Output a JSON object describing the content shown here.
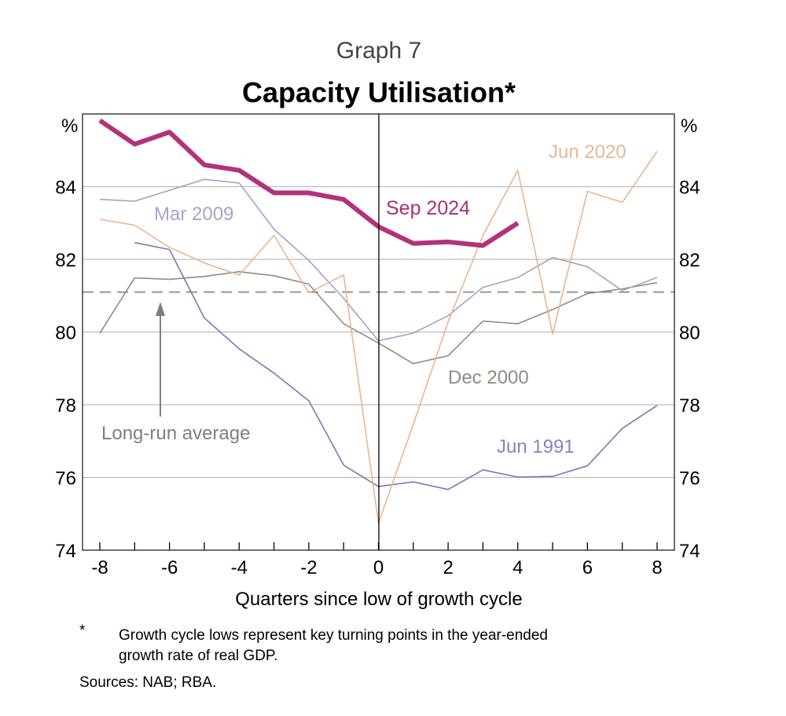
{
  "graph_number": "Graph 7",
  "chart_data": {
    "type": "line",
    "title": "Capacity Utilisation*",
    "xlabel": "Quarters since low of growth cycle",
    "ylabel_left": "%",
    "ylabel_right": "%",
    "xlim": [
      -8,
      8
    ],
    "ylim": [
      74,
      86
    ],
    "x_ticks": [
      -8,
      -6,
      -4,
      -2,
      0,
      2,
      4,
      6,
      8
    ],
    "y_ticks": [
      74,
      76,
      78,
      80,
      82,
      84
    ],
    "grid": true,
    "series": [
      {
        "name": "Jun 1991",
        "color": "#7b78b0",
        "width": 1.6,
        "x": [
          -7,
          -6,
          -5,
          -4,
          -3,
          -2,
          -1,
          0,
          1,
          2,
          3,
          4,
          5,
          6,
          7,
          8
        ],
        "values": [
          82.46,
          82.27,
          80.39,
          79.54,
          78.87,
          78.11,
          76.34,
          75.75,
          75.88,
          75.67,
          76.21,
          76.01,
          76.03,
          76.32,
          77.35,
          77.98
        ]
      },
      {
        "name": "Dec 2000",
        "color": "#8e8e86",
        "width": 1.6,
        "x": [
          -8,
          -7,
          -6,
          -5,
          -4,
          -3,
          -2,
          -1,
          0,
          1,
          2,
          3,
          4,
          5,
          6,
          7,
          8
        ],
        "values": [
          79.97,
          81.49,
          81.45,
          81.53,
          81.66,
          81.55,
          81.32,
          80.23,
          79.7,
          79.13,
          79.35,
          80.3,
          80.23,
          80.62,
          81.06,
          81.19,
          81.36
        ]
      },
      {
        "name": "Mar 2009",
        "color": "#a7a0c8",
        "width": 1.6,
        "x": [
          -8,
          -7,
          -6,
          -5,
          -4,
          -3,
          -2,
          -1,
          0,
          1,
          2,
          3,
          4,
          5,
          6,
          7,
          8
        ],
        "values": [
          83.65,
          83.6,
          83.9,
          84.2,
          84.1,
          82.83,
          81.97,
          80.93,
          79.76,
          79.97,
          80.45,
          81.23,
          81.5,
          82.05,
          81.8,
          81.14,
          81.5
        ]
      },
      {
        "name": "Jun 2020",
        "color": "#e9b58f",
        "width": 1.6,
        "x": [
          -8,
          -7,
          -6,
          -5,
          -4,
          -3,
          -2,
          -1,
          0,
          1,
          2,
          3,
          4,
          5,
          6,
          7,
          8
        ],
        "values": [
          83.1,
          82.94,
          82.33,
          81.9,
          81.57,
          82.66,
          81.08,
          81.57,
          74.74,
          77.46,
          80.28,
          82.66,
          84.45,
          79.95,
          83.87,
          83.57,
          84.97
        ]
      },
      {
        "name": "Sep 2024",
        "color": "#b3327a",
        "width": 6,
        "x": [
          -8,
          -7,
          -6,
          -5,
          -4,
          -3,
          -2,
          -1,
          0,
          1,
          2,
          3,
          4
        ],
        "values": [
          85.82,
          85.17,
          85.5,
          84.6,
          84.45,
          83.83,
          83.83,
          83.65,
          82.9,
          82.44,
          82.48,
          82.38,
          83.0
        ]
      }
    ],
    "reference_line": {
      "label": "Long-run average",
      "value": 81.1,
      "color": "#8a8a8a"
    },
    "annotations": {
      "Mar 2009": "Mar 2009",
      "Sep 2024": "Sep 2024",
      "Jun 2020": "Jun 2020",
      "Dec 2000": "Dec 2000",
      "Jun 1991": "Jun 1991",
      "Long-run average": "Long-run average"
    }
  },
  "footnote": {
    "marker": "*",
    "line1": "Growth cycle lows represent key turning points in the year-ended",
    "line2": "growth rate of real GDP."
  },
  "sources": "Sources: NAB; RBA."
}
